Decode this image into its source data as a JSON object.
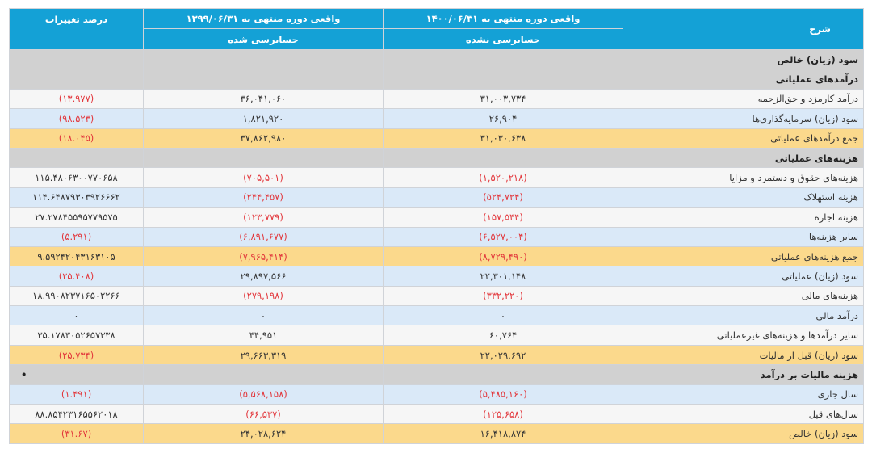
{
  "header": {
    "desc": "شرح",
    "col_current": "واقعی دوره منتهی به ۱۴۰۰/۰۶/۳۱",
    "col_current_sub": "حسابرسی نشده",
    "col_prior": "واقعی دوره منتهی به ۱۳۹۹/۰۶/۳۱",
    "col_prior_sub": "حسابرسی شده",
    "col_change": "درصد تغییرات"
  },
  "rows": [
    {
      "desc": "سود (زیان) خالص",
      "cur": "",
      "prev": "",
      "pct": ""
    },
    {
      "desc": "درآمدهای عملیاتی",
      "cur": "",
      "prev": "",
      "pct": ""
    },
    {
      "desc": "درآمد کارمزد و حق‌الزحمه",
      "cur": "۳۱,۰۰۳,۷۳۴",
      "prev": "۳۶,۰۴۱,۰۶۰",
      "pct": "(۱۳.۹۷۷)"
    },
    {
      "desc": "سود (زیان) سرمایه‌گذاری‌ها",
      "cur": "۲۶,۹۰۴",
      "prev": "۱,۸۲۱,۹۲۰",
      "pct": "(۹۸.۵۲۳)"
    },
    {
      "desc": "جمع درآمدهای عملیاتی",
      "cur": "۳۱,۰۳۰,۶۳۸",
      "prev": "۳۷,۸۶۲,۹۸۰",
      "pct": "(۱۸.۰۴۵)"
    },
    {
      "desc": "هزینه‌های عملیاتی",
      "cur": "",
      "prev": "",
      "pct": ""
    },
    {
      "desc": "هزینه‌های حقوق و دستمزد و مزایا",
      "cur": "(۱,۵۲۰,۲۱۸)",
      "prev": "(۷۰۵,۵۰۱)",
      "pct": "۱۱۵.۴۸۰۶۳۰۰۷۷۰۶۵۸"
    },
    {
      "desc": "هزینه استهلاک",
      "cur": "(۵۲۴,۷۲۴)",
      "prev": "(۲۴۴,۴۵۷)",
      "pct": "۱۱۴.۶۴۸۷۹۳۰۳۹۲۶۶۶۲"
    },
    {
      "desc": "هزینه اجاره",
      "cur": "(۱۵۷,۵۴۴)",
      "prev": "(۱۲۳,۷۷۹)",
      "pct": "۲۷.۲۷۸۴۵۵۹۵۷۷۹۵۷۵"
    },
    {
      "desc": "سایر هزینه‌ها",
      "cur": "(۶,۵۲۷,۰۰۴)",
      "prev": "(۶,۸۹۱,۶۷۷)",
      "pct": "(۵.۲۹۱)"
    },
    {
      "desc": "جمع هزینه‌های عملیاتی",
      "cur": "(۸,۷۲۹,۴۹۰)",
      "prev": "(۷,۹۶۵,۴۱۴)",
      "pct": "۹.۵۹۲۴۲۰۴۳۱۶۳۱۰۵"
    },
    {
      "desc": "سود (زیان) عملیاتی",
      "cur": "۲۲,۳۰۱,۱۴۸",
      "prev": "۲۹,۸۹۷,۵۶۶",
      "pct": "(۲۵.۴۰۸)"
    },
    {
      "desc": "هزینه‌های مالی",
      "cur": "(۳۳۲,۲۲۰)",
      "prev": "(۲۷۹,۱۹۸)",
      "pct": "۱۸.۹۹۰۸۲۳۷۱۶۵۰۲۲۶۶"
    },
    {
      "desc": "درآمد مالی",
      "cur": "۰",
      "prev": "۰",
      "pct": "۰"
    },
    {
      "desc": "سایر درآمدها و هزینه‌های غیرعملیاتی",
      "cur": "۶۰,۷۶۴",
      "prev": "۴۴,۹۵۱",
      "pct": "۳۵.۱۷۸۳۰۵۲۶۵۷۳۳۸"
    },
    {
      "desc": "سود (زیان) قبل از مالیات",
      "cur": "۲۲,۰۲۹,۶۹۲",
      "prev": "۲۹,۶۶۳,۳۱۹",
      "pct": "(۲۵.۷۳۴)"
    },
    {
      "desc": "هزینه مالیات بر درآمد",
      "cur": "",
      "prev": "",
      "pct": ""
    },
    {
      "desc": "سال جاری",
      "cur": "(۵,۴۸۵,۱۶۰)",
      "prev": "(۵,۵۶۸,۱۵۸)",
      "pct": "(۱.۴۹۱)"
    },
    {
      "desc": "سال‌های قبل",
      "cur": "(۱۲۵,۶۵۸)",
      "prev": "(۶۶,۵۳۷)",
      "pct": "۸۸.۸۵۴۲۳۱۶۵۵۶۲۰۱۸"
    },
    {
      "desc": "سود (زیان) خالص",
      "cur": "۱۶,۴۱۸,۸۷۴",
      "prev": "۲۴,۰۲۸,۶۲۴",
      "pct": "(۳۱.۶۷)"
    }
  ],
  "section_marker": "•"
}
